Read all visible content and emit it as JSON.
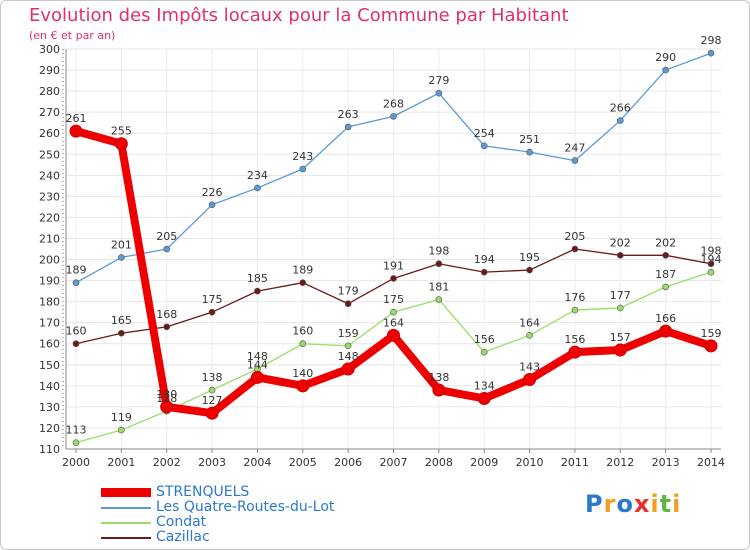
{
  "title": "Evolution des Impôts locaux pour la Commune par Habitant",
  "subtitle": "(en € et par an)",
  "logo": {
    "letters": [
      "P",
      "r",
      "o",
      "x",
      "i",
      "t",
      "i"
    ],
    "colors": [
      "#2a7ac8",
      "#f0a020",
      "#2a7ac8",
      "#e8302a",
      "#f0a020",
      "#60b840",
      "#f0a020"
    ]
  },
  "chart_data": {
    "type": "line",
    "title": "Evolution des Impôts locaux pour la Commune par Habitant",
    "subtitle": "(en € et par an)",
    "xlabel": "",
    "ylabel": "",
    "x": [
      "2000",
      "2001",
      "2002",
      "2003",
      "2004",
      "2005",
      "2006",
      "2007",
      "2008",
      "2009",
      "2010",
      "2011",
      "2012",
      "2013",
      "2014"
    ],
    "ylim": [
      110,
      300
    ],
    "yticks": [
      110,
      120,
      130,
      140,
      150,
      160,
      170,
      180,
      190,
      200,
      210,
      220,
      230,
      240,
      250,
      260,
      270,
      280,
      290,
      300
    ],
    "grid": true,
    "legend_position": "bottom-left",
    "series": [
      {
        "name": "STRENQUELS",
        "color": "#ee0000",
        "values": [
          261,
          255,
          130,
          127,
          144,
          140,
          148,
          164,
          138,
          134,
          143,
          156,
          157,
          166,
          159
        ]
      },
      {
        "name": "Les Quatre-Routes-du-Lot",
        "color": "#5a9ad8",
        "values": [
          189,
          201,
          205,
          226,
          234,
          243,
          263,
          268,
          279,
          254,
          251,
          247,
          266,
          290,
          298
        ]
      },
      {
        "name": "Condat",
        "color": "#99dd66",
        "values": [
          113,
          119,
          128,
          138,
          148,
          160,
          159,
          175,
          181,
          156,
          164,
          176,
          177,
          187,
          194
        ]
      },
      {
        "name": "Cazillac",
        "color": "#6b1a1a",
        "values": [
          160,
          165,
          168,
          175,
          185,
          189,
          179,
          191,
          198,
          194,
          195,
          205,
          202,
          202,
          198
        ]
      }
    ]
  }
}
